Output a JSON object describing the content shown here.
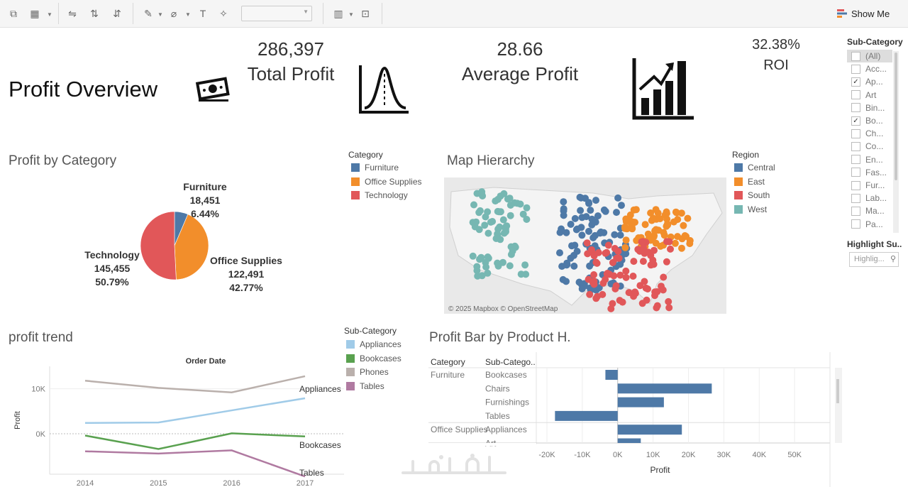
{
  "toolbar": {
    "show_me_label": "Show Me"
  },
  "header": {
    "title": "Profit Overview",
    "kpis": [
      {
        "value": "286,397",
        "label": "Total Profit"
      },
      {
        "value": "28.66",
        "label": "Average Profit"
      },
      {
        "value": "32.38%",
        "label": "ROI"
      }
    ]
  },
  "filter": {
    "title": "Sub-Category",
    "items": [
      {
        "label": "(All)",
        "checked": false
      },
      {
        "label": "Acc...",
        "checked": false
      },
      {
        "label": "Ap...",
        "checked": true
      },
      {
        "label": "Art",
        "checked": false
      },
      {
        "label": "Bin...",
        "checked": false
      },
      {
        "label": "Bo...",
        "checked": true
      },
      {
        "label": "Ch...",
        "checked": false
      },
      {
        "label": "Co...",
        "checked": false
      },
      {
        "label": "En...",
        "checked": false
      },
      {
        "label": "Fas...",
        "checked": false
      },
      {
        "label": "Fur...",
        "checked": false
      },
      {
        "label": "Lab...",
        "checked": false
      },
      {
        "label": "Ma...",
        "checked": false
      },
      {
        "label": "Pa...",
        "checked": false
      }
    ],
    "highlight_title": "Highlight Su..",
    "highlight_placeholder": "Highlig..."
  },
  "pie": {
    "title": "Profit by Category",
    "legend_title": "Category",
    "labels": {
      "furniture": [
        "Furniture",
        "18,451",
        "6.44%"
      ],
      "office": [
        "Office Supplies",
        "122,491",
        "42.77%"
      ],
      "technology": [
        "Technology",
        "145,455",
        "50.79%"
      ]
    }
  },
  "map": {
    "title": "Map Hierarchy",
    "legend_title": "Region",
    "attribution": "© 2025 Mapbox © OpenStreetMap",
    "regions": [
      {
        "name": "Central",
        "color": "#4e79a7"
      },
      {
        "name": "East",
        "color": "#f28e2b"
      },
      {
        "name": "South",
        "color": "#e15759"
      },
      {
        "name": "West",
        "color": "#76b7b2"
      }
    ]
  },
  "trend": {
    "title": "profit trend",
    "legend_title": "Sub-Category"
  },
  "bars": {
    "title": "Profit Bar by Product H.",
    "col_headers": [
      "Category",
      "Sub-Catego.."
    ]
  },
  "chart_data": [
    {
      "type": "pie",
      "title": "Profit by Category",
      "categories": [
        "Furniture",
        "Office Supplies",
        "Technology"
      ],
      "values": [
        18451,
        122491,
        145455
      ],
      "percents": [
        6.44,
        42.77,
        50.79
      ],
      "colors": [
        "#4e79a7",
        "#f28e2b",
        "#e15759"
      ]
    },
    {
      "type": "line",
      "title": "Order Date",
      "xlabel": "",
      "ylabel": "Profit",
      "x": [
        "2014",
        "2015",
        "2016",
        "2017"
      ],
      "ylim": [
        -9000,
        15000
      ],
      "yticks": [
        {
          "v": 10000,
          "label": "10K"
        },
        {
          "v": 0,
          "label": "0K"
        }
      ],
      "series": [
        {
          "name": "Phones",
          "values": [
            11800,
            10200,
            9200,
            12800
          ],
          "color": "#bab0ac",
          "end_label": ""
        },
        {
          "name": "Appliances",
          "values": [
            2400,
            2500,
            5200,
            7900
          ],
          "color": "#a0cbe8",
          "end_label": "Appliances"
        },
        {
          "name": "Bookcases",
          "values": [
            -400,
            -3400,
            100,
            -600
          ],
          "color": "#59a14f",
          "end_label": "Bookcases"
        },
        {
          "name": "Tables",
          "values": [
            -3900,
            -4400,
            -3700,
            -9500
          ],
          "color": "#b07aa1",
          "end_label": "Tables"
        }
      ]
    },
    {
      "type": "bar",
      "title": "Profit Bar by Product H.",
      "xlabel": "Profit",
      "xlim": [
        -20000,
        60000
      ],
      "xticks": [
        {
          "v": -20000,
          "label": "-20K"
        },
        {
          "v": -10000,
          "label": "-10K"
        },
        {
          "v": 0,
          "label": "0K"
        },
        {
          "v": 10000,
          "label": "10K"
        },
        {
          "v": 20000,
          "label": "20K"
        },
        {
          "v": 30000,
          "label": "30K"
        },
        {
          "v": 40000,
          "label": "40K"
        },
        {
          "v": 50000,
          "label": "50K"
        }
      ],
      "rows": [
        {
          "category": "Furniture",
          "sub": "Bookcases",
          "value": -3473
        },
        {
          "category": "",
          "sub": "Chairs",
          "value": 26590
        },
        {
          "category": "",
          "sub": "Furnishings",
          "value": 13059
        },
        {
          "category": "",
          "sub": "Tables",
          "value": -17725
        },
        {
          "category": "Office Supplies",
          "sub": "Appliances",
          "value": 18138
        },
        {
          "category": "",
          "sub": "Art",
          "value": 6528
        }
      ],
      "color": "#4e79a7"
    }
  ]
}
